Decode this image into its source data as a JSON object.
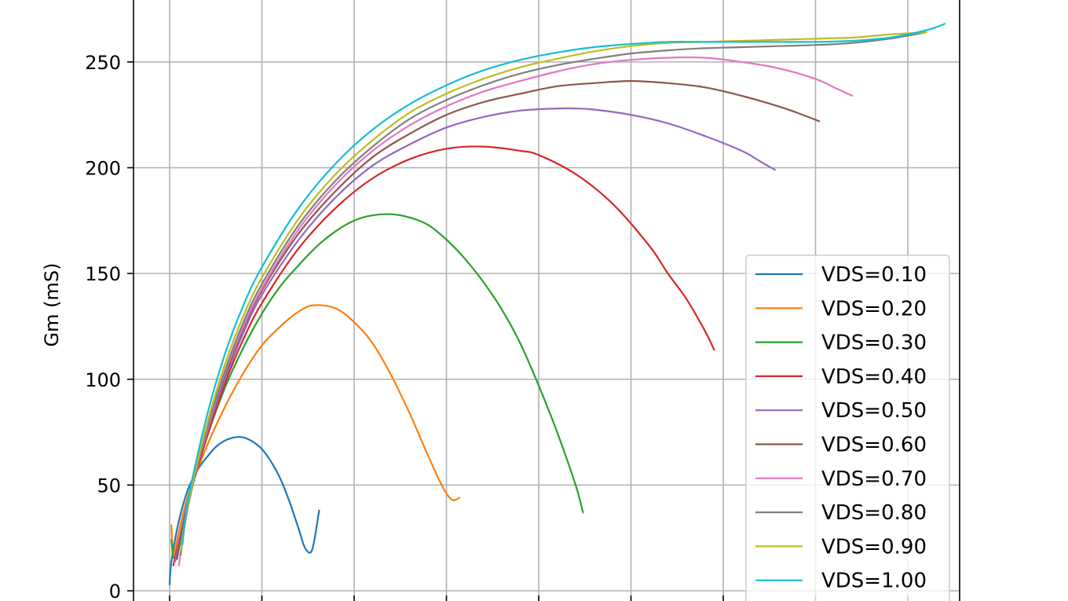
{
  "chart_data": {
    "type": "line",
    "title": "",
    "xlabel": "",
    "ylabel": "Gm (mS)",
    "xlim": [
      -0.2,
      4.3
    ],
    "ylim": [
      0,
      275
    ],
    "y_ticks": [
      0,
      50,
      100,
      150,
      200,
      250
    ],
    "x_grid": [
      0,
      0.5,
      1.0,
      1.5,
      2.0,
      2.5,
      3.0,
      3.5,
      4.0
    ],
    "grid": true,
    "legend_position": "lower right",
    "series": [
      {
        "name": "VDS=0.10",
        "color": "#1f77b4",
        "x": [
          0.0,
          0.01,
          0.05,
          0.1,
          0.15,
          0.2,
          0.25,
          0.3,
          0.35,
          0.4,
          0.45,
          0.5,
          0.55,
          0.6,
          0.65,
          0.7,
          0.73,
          0.76,
          0.78,
          0.81
        ],
        "y": [
          3,
          14,
          33,
          48,
          57,
          63,
          68,
          71,
          72.5,
          72.5,
          70.5,
          67,
          61,
          53,
          42,
          29,
          21,
          18,
          22,
          38
        ]
      },
      {
        "name": "VDS=0.20",
        "color": "#ff7f0e",
        "x": [
          0.01,
          0.02,
          0.05,
          0.1,
          0.2,
          0.3,
          0.4,
          0.5,
          0.6,
          0.7,
          0.78,
          0.9,
          1.0,
          1.1,
          1.2,
          1.3,
          1.4,
          1.48,
          1.53,
          1.57
        ],
        "y": [
          31,
          17,
          28,
          45,
          68,
          87,
          103,
          116,
          125,
          132,
          135,
          133.5,
          127,
          117,
          102,
          84,
          64,
          49,
          43,
          44
        ]
      },
      {
        "name": "VDS=0.30",
        "color": "#2ca02c",
        "x": [
          0.01,
          0.03,
          0.1,
          0.2,
          0.3,
          0.4,
          0.5,
          0.6,
          0.7,
          0.8,
          0.9,
          1.0,
          1.1,
          1.2,
          1.3,
          1.4,
          1.5,
          1.6,
          1.7,
          1.8,
          1.9,
          2.0,
          2.1,
          2.2,
          2.24
        ],
        "y": [
          24,
          16,
          42,
          72,
          96,
          115,
          131,
          144,
          154,
          163,
          170,
          175,
          177.5,
          178,
          176.5,
          173,
          166,
          157,
          146,
          133,
          117,
          97,
          75,
          50,
          37
        ]
      },
      {
        "name": "VDS=0.40",
        "color": "#d62728",
        "x": [
          0.02,
          0.1,
          0.2,
          0.3,
          0.4,
          0.5,
          0.7,
          0.9,
          1.1,
          1.3,
          1.5,
          1.7,
          1.9,
          2.0,
          2.2,
          2.4,
          2.6,
          2.7,
          2.8,
          2.9,
          2.95
        ],
        "y": [
          12,
          42,
          72,
          98,
          119,
          136,
          162,
          181,
          195,
          204,
          209,
          210,
          208,
          206,
          197,
          183,
          163,
          150,
          138,
          123,
          114
        ]
      },
      {
        "name": "VDS=0.50",
        "color": "#9467bd",
        "x": [
          0.03,
          0.1,
          0.2,
          0.3,
          0.4,
          0.5,
          0.7,
          0.9,
          1.1,
          1.3,
          1.5,
          1.7,
          1.9,
          2.1,
          2.2,
          2.3,
          2.5,
          2.7,
          2.9,
          3.1,
          3.2,
          3.28
        ],
        "y": [
          14,
          43,
          74,
          100,
          122,
          140,
          166,
          186,
          201,
          211,
          219,
          224,
          227,
          228,
          228,
          227.5,
          225,
          221,
          215,
          208,
          203,
          199
        ]
      },
      {
        "name": "VDS=0.60",
        "color": "#8c564b",
        "x": [
          0.04,
          0.1,
          0.2,
          0.3,
          0.4,
          0.5,
          0.7,
          0.9,
          1.1,
          1.3,
          1.5,
          1.7,
          1.9,
          2.1,
          2.3,
          2.5,
          2.7,
          2.9,
          3.1,
          3.3,
          3.4,
          3.52
        ],
        "y": [
          15,
          42,
          75,
          102,
          124,
          142,
          169,
          189,
          205,
          216,
          225,
          231,
          235,
          238.5,
          240,
          241,
          240,
          238,
          234,
          229,
          226,
          222
        ]
      },
      {
        "name": "VDS=0.70",
        "color": "#e377c2",
        "x": [
          0.05,
          0.1,
          0.2,
          0.3,
          0.4,
          0.5,
          0.7,
          0.9,
          1.1,
          1.3,
          1.5,
          1.7,
          1.9,
          2.1,
          2.3,
          2.5,
          2.7,
          2.9,
          3.1,
          3.3,
          3.5,
          3.6,
          3.7
        ],
        "y": [
          12,
          40,
          75,
          103,
          125,
          143,
          171,
          192,
          208,
          220,
          229,
          236,
          241,
          245.5,
          249,
          251,
          252,
          252,
          250,
          247,
          242,
          238,
          234
        ]
      },
      {
        "name": "VDS=0.80",
        "color": "#7f7f7f",
        "x": [
          0.06,
          0.1,
          0.2,
          0.3,
          0.4,
          0.5,
          0.7,
          0.9,
          1.1,
          1.3,
          1.5,
          1.7,
          1.9,
          2.1,
          2.3,
          2.5,
          2.7,
          2.9,
          3.1,
          3.3,
          3.5,
          3.7,
          3.9,
          4.1
        ],
        "y": [
          17,
          40,
          76,
          104,
          127,
          145,
          173,
          194,
          210,
          223,
          232,
          239,
          244.5,
          248.5,
          251.5,
          254,
          255.5,
          256.5,
          257,
          257.5,
          258,
          259,
          261,
          264
        ]
      },
      {
        "name": "VDS=0.90",
        "color": "#bcbd22",
        "x": [
          0.06,
          0.1,
          0.2,
          0.3,
          0.4,
          0.5,
          0.7,
          0.9,
          1.1,
          1.3,
          1.5,
          1.7,
          1.9,
          2.1,
          2.3,
          2.5,
          2.7,
          2.9,
          3.1,
          3.3,
          3.5,
          3.7,
          3.9,
          4.1
        ],
        "y": [
          19,
          41,
          78,
          107,
          130,
          148,
          176,
          197,
          213,
          226,
          235,
          242,
          247.5,
          251.5,
          255,
          257.5,
          259,
          259.5,
          260,
          260.5,
          261,
          261.5,
          263,
          264
        ]
      },
      {
        "name": "VDS=1.00",
        "color": "#17becf",
        "x": [
          0.07,
          0.1,
          0.2,
          0.3,
          0.4,
          0.5,
          0.7,
          0.9,
          1.1,
          1.3,
          1.5,
          1.7,
          1.9,
          2.1,
          2.3,
          2.5,
          2.7,
          2.9,
          3.1,
          3.3,
          3.5,
          3.7,
          3.9,
          4.1,
          4.2
        ],
        "y": [
          22,
          43,
          82,
          112,
          135,
          153,
          181,
          202,
          218,
          230,
          239,
          246,
          251,
          254.5,
          257,
          258.5,
          259.5,
          259.5,
          259.5,
          259.5,
          259.5,
          260,
          261.5,
          265,
          268
        ]
      }
    ]
  }
}
